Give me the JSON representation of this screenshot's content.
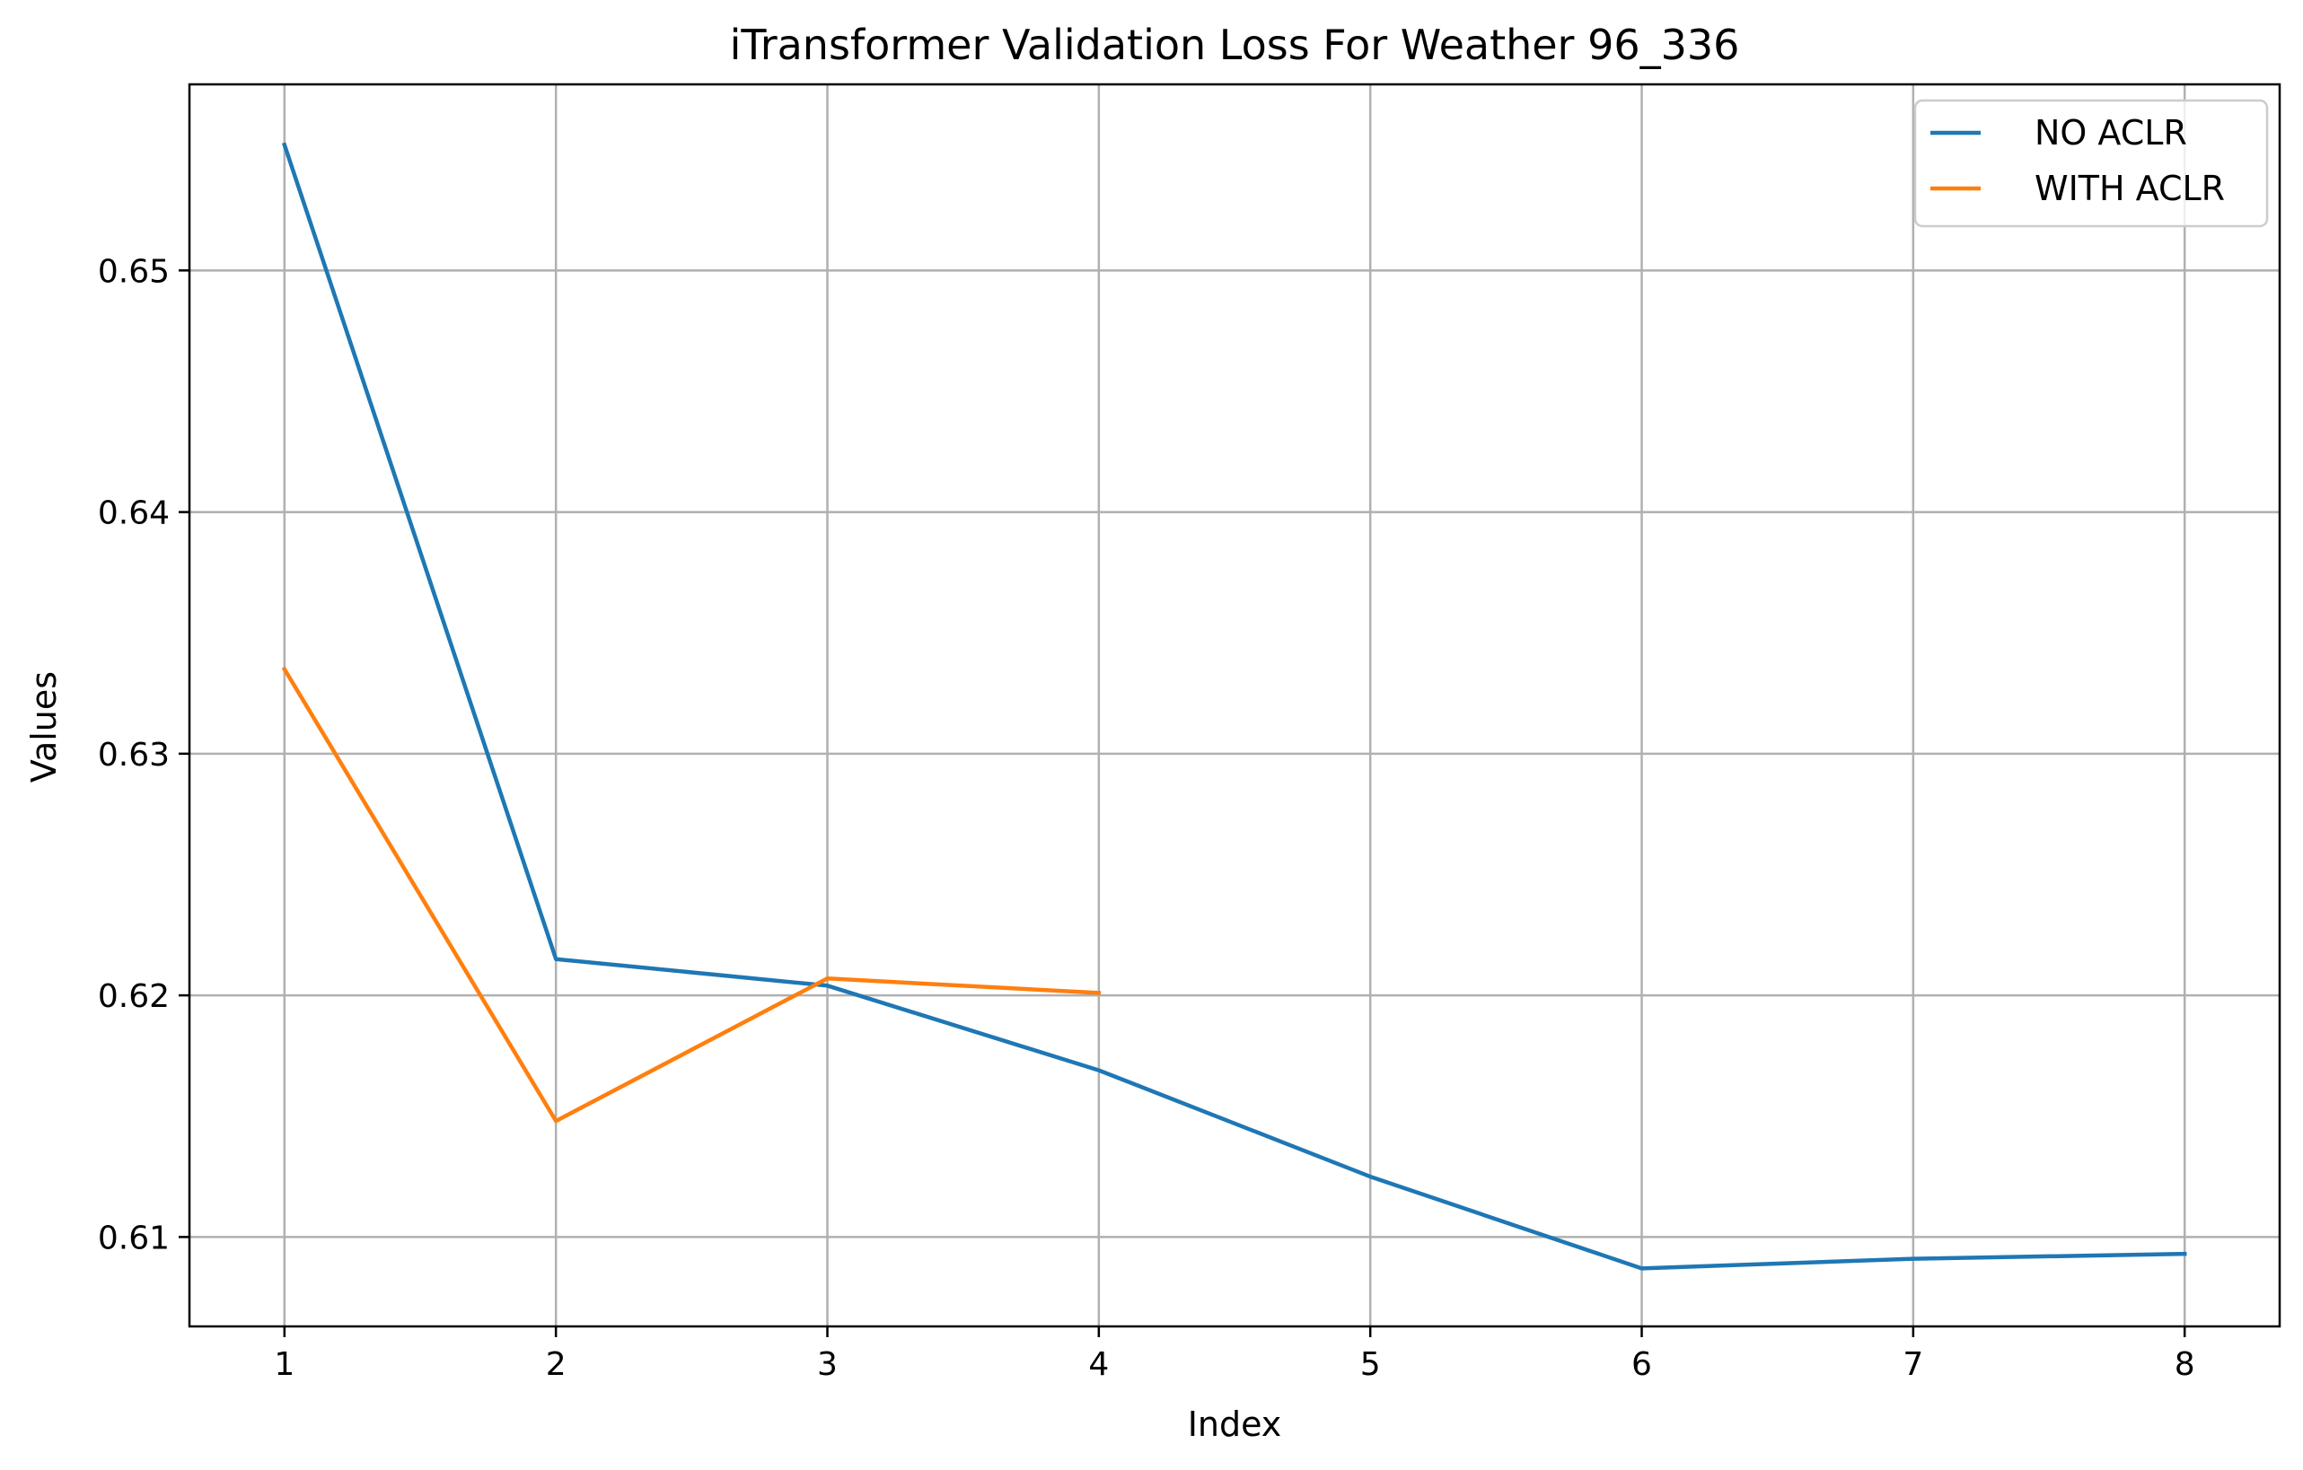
{
  "chart_data": {
    "type": "line",
    "title": "iTransformer Validation Loss For Weather 96_336",
    "xlabel": "Index",
    "ylabel": "Values",
    "xlim": [
      0.65,
      8.35
    ],
    "ylim": [
      0.6063,
      0.6577
    ],
    "xticks": [
      1,
      2,
      3,
      4,
      5,
      6,
      7,
      8
    ],
    "yticks": [
      0.61,
      0.62,
      0.63,
      0.64,
      0.65
    ],
    "ytick_labels": [
      "0.61",
      "0.62",
      "0.63",
      "0.64",
      "0.65"
    ],
    "grid": true,
    "legend_position": "upper-right",
    "series": [
      {
        "name": "NO ACLR",
        "color": "#1f77b4",
        "x": [
          1,
          2,
          3,
          4,
          5,
          6,
          7,
          8
        ],
        "values": [
          0.6552,
          0.6215,
          0.6204,
          0.6169,
          0.6125,
          0.6087,
          0.6091,
          0.6093
        ]
      },
      {
        "name": "WITH ACLR",
        "color": "#ff7f0e",
        "x": [
          1,
          2,
          3,
          4
        ],
        "values": [
          0.6335,
          0.6148,
          0.6207,
          0.6201
        ]
      }
    ]
  }
}
